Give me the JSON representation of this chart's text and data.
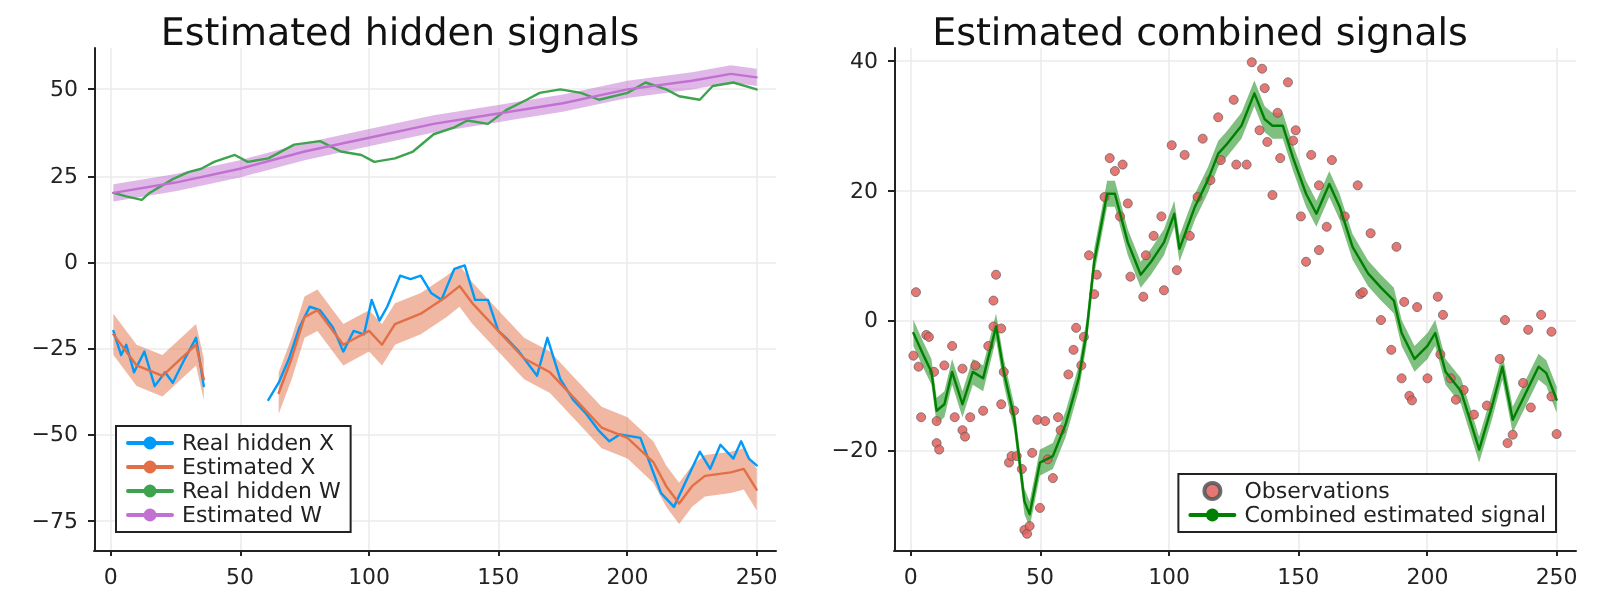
{
  "chart_data": [
    {
      "type": "line",
      "title": "Estimated hidden signals",
      "xlim": [
        -6.5,
        257.5
      ],
      "xticks": [
        0,
        50,
        100,
        150,
        200,
        250
      ],
      "ylim": [
        -83.5,
        62
      ],
      "yticks": [
        -75,
        -50,
        -25,
        0,
        25,
        50
      ],
      "grid": true,
      "legend": "bottom left",
      "marker": "none",
      "line_style": "solid",
      "series": [
        {
          "name": "Real hidden X",
          "color": "#009af9",
          "x": [
            1,
            4,
            6,
            9,
            13,
            17,
            21,
            24,
            28,
            33,
            36,
            40,
            61,
            65,
            69,
            73,
            77,
            81,
            86,
            90,
            94,
            98,
            101,
            104,
            107,
            112,
            116,
            120,
            124,
            128,
            133,
            137,
            141,
            146,
            150,
            153,
            158,
            165,
            169,
            174,
            179,
            184,
            189,
            193,
            197,
            205,
            209,
            213,
            218,
            223,
            228,
            232,
            236,
            241,
            244,
            247,
            250
          ],
          "values": [
            -20,
            -27,
            -24,
            -32,
            -26,
            -36,
            -32,
            -35,
            -29,
            -22,
            -36,
            null,
            -40,
            -35,
            -28,
            -19,
            -13,
            -14,
            -19,
            -26,
            -20,
            -21,
            -11,
            -17,
            -13,
            -4,
            -5,
            -4,
            -9,
            -11,
            -2,
            -1,
            -11,
            -11,
            -20,
            -22,
            -26,
            -33,
            -22,
            -34,
            -40,
            -44,
            -49,
            -52,
            -50,
            -51,
            -59,
            -67,
            -71,
            -63,
            -55,
            -60,
            -53,
            -57,
            -52,
            -57,
            -59
          ]
        },
        {
          "name": "Estimated X",
          "color": "#e26f46",
          "x": [
            1,
            10,
            20,
            33,
            36,
            40,
            65,
            70,
            75,
            80,
            90,
            95,
            100,
            105,
            110,
            120,
            130,
            135,
            140,
            150,
            160,
            170,
            180,
            190,
            200,
            210,
            215,
            220,
            225,
            230,
            240,
            245,
            250
          ],
          "values": [
            -21,
            -30,
            -33,
            -24,
            -34,
            null,
            -38,
            -28,
            -16,
            -14,
            -24,
            -22,
            -20,
            -24,
            -18,
            -15,
            -10,
            -7,
            -12,
            -20,
            -28,
            -32,
            -40,
            -48,
            -51,
            -58,
            -65,
            -70,
            -65,
            -62,
            -61,
            -60,
            -66
          ],
          "lower": [
            -27,
            -36,
            -39,
            -30,
            -40,
            null,
            -44,
            -34,
            -22,
            -20,
            -30,
            -28,
            -26,
            -30,
            -24,
            -21,
            -16,
            -13,
            -18,
            -26,
            -34,
            -38,
            -46,
            -54,
            -57,
            -64,
            -71,
            -76,
            -71,
            -68,
            -67,
            -66,
            -72
          ],
          "upper": [
            -15,
            -24,
            -27,
            -18,
            -28,
            null,
            -32,
            -22,
            -10,
            -8,
            -18,
            -16,
            -14,
            -18,
            -12,
            -9,
            -4,
            -1,
            -6,
            -14,
            -22,
            -26,
            -34,
            -42,
            -45,
            -52,
            -59,
            -64,
            -59,
            -56,
            -55,
            -54,
            -60
          ]
        },
        {
          "name": "Real hidden W",
          "color": "#3da44d",
          "x": [
            1,
            6,
            12,
            15,
            24,
            30,
            35,
            40,
            48,
            53,
            61,
            71,
            81,
            89,
            97,
            102,
            110,
            117,
            125,
            133,
            138,
            146,
            153,
            161,
            166,
            174,
            182,
            189,
            200,
            207,
            215,
            220,
            228,
            233,
            241,
            250
          ],
          "values": [
            20,
            19,
            18,
            20,
            24,
            26,
            27,
            29,
            31,
            29,
            30,
            34,
            35,
            32,
            31,
            29,
            30,
            32,
            37,
            39,
            41,
            40,
            44,
            47,
            49,
            50,
            49,
            47,
            49,
            52,
            50,
            48,
            47,
            51,
            52,
            50
          ]
        },
        {
          "name": "Estimated W",
          "color": "#c271d2",
          "x": [
            1,
            25,
            50,
            75,
            100,
            125,
            150,
            175,
            200,
            225,
            240,
            250
          ],
          "values": [
            20,
            23,
            27,
            32,
            36,
            40,
            43,
            46,
            50,
            52.5,
            54.5,
            53.5
          ],
          "lower": [
            17.5,
            20.5,
            24.5,
            29.5,
            33.5,
            37.5,
            40.5,
            43.5,
            47.5,
            50,
            52,
            51
          ],
          "upper": [
            22.5,
            25.5,
            29.5,
            34.5,
            38.5,
            42.5,
            45.5,
            48.5,
            52.5,
            55,
            57,
            56
          ]
        }
      ]
    },
    {
      "type": "line",
      "title": "Estimated combined signals",
      "xlim": [
        -6.5,
        257.5
      ],
      "xticks": [
        0,
        50,
        100,
        150,
        200,
        250
      ],
      "ylim": [
        -35.5,
        42
      ],
      "yticks": [
        -20,
        0,
        20,
        40
      ],
      "grid": true,
      "legend": "bottom right",
      "marker": "none",
      "line_style": "solid",
      "series": [
        {
          "name": "Observations",
          "type": "scatter",
          "marker": "circle",
          "color": "#e0605c",
          "x": [
            1,
            2,
            3,
            4,
            6,
            7,
            9,
            10,
            10,
            11,
            13,
            16,
            17,
            20,
            20,
            21,
            23,
            25,
            28,
            30,
            32,
            32,
            33,
            35,
            36,
            35,
            38,
            39,
            40,
            41,
            43,
            44,
            45,
            46,
            47,
            49,
            50,
            52,
            53,
            55,
            57,
            58,
            61,
            63,
            64,
            66,
            67,
            69,
            71,
            72,
            75,
            77,
            79,
            81,
            82,
            84,
            85,
            90,
            91,
            94,
            97,
            98,
            101,
            103,
            106,
            108,
            111,
            113,
            116,
            119,
            120,
            125,
            126,
            130,
            132,
            135,
            136,
            137,
            138,
            140,
            142,
            143,
            146,
            148,
            149,
            151,
            153,
            155,
            158,
            158,
            161,
            163,
            168,
            173,
            174,
            175,
            178,
            182,
            186,
            188,
            190,
            191,
            193,
            194,
            196,
            200,
            204,
            205,
            206,
            209,
            211,
            214,
            218,
            223,
            228,
            230,
            231,
            233,
            237,
            239,
            240,
            244,
            248,
            248,
            250
          ],
          "values": [
            -5.5,
            4.3,
            -7.2,
            -15,
            -2.3,
            -2.6,
            -8,
            -15.6,
            -19,
            -20,
            -7,
            -4,
            -15,
            -7.5,
            -17,
            -18,
            -15,
            -7,
            -14,
            -4,
            -1,
            3,
            7,
            -1.3,
            -8,
            -13,
            -22,
            -21,
            -14,
            -21,
            -23,
            -32.4,
            -33,
            -31.8,
            -20.5,
            -15.4,
            -29,
            -15.6,
            -21.5,
            -24.4,
            -15,
            -17,
            -8.4,
            -4.6,
            -1.2,
            -7,
            -2.6,
            10,
            4,
            7,
            19,
            25,
            23,
            16,
            24,
            18,
            6.7,
            3.6,
            10,
            13,
            16,
            4.6,
            27,
            7.7,
            25.5,
            13,
            19,
            28,
            21.6,
            31.3,
            24.7,
            34,
            24,
            24,
            39.8,
            29.3,
            38.8,
            35.8,
            27.5,
            19.3,
            32,
            25,
            36.7,
            27.7,
            29.3,
            16,
            9,
            25.5,
            10.8,
            20.8,
            14.4,
            24.7,
            16,
            20.8,
            4,
            4.3,
            13.4,
            0,
            -4.6,
            11.3,
            -9,
            2.8,
            -11.7,
            -12.4,
            2,
            -9,
            3.6,
            -5.3,
            0.8,
            -9,
            -12.3,
            -10.8,
            -14.6,
            -13.2,
            -6,
            0,
            -19,
            -17.7,
            -9.7,
            -1.5,
            -13.5,
            0.8,
            -1.8,
            -11.8,
            -17.6
          ]
        },
        {
          "name": "Combined estimated signal",
          "color": "#008000",
          "x": [
            1,
            5,
            8,
            10,
            13,
            16,
            20,
            24,
            28,
            33,
            36,
            40,
            44,
            46,
            50,
            55,
            60,
            65,
            68,
            71,
            76,
            79,
            84,
            89,
            93,
            98,
            102,
            104,
            110,
            115,
            119,
            122,
            128,
            133,
            137,
            140,
            144,
            148,
            153,
            157,
            162,
            166,
            171,
            177,
            182,
            187,
            190,
            195,
            200,
            203,
            207,
            213,
            218,
            220,
            225,
            229,
            233,
            238,
            243,
            246,
            250
          ],
          "values": [
            -2,
            -5.5,
            -8,
            -14,
            -13,
            -8,
            -13,
            -8,
            -9,
            -1,
            -8,
            -15,
            -28,
            -30,
            -22,
            -21,
            -16,
            -9,
            -2,
            9,
            19.5,
            19.5,
            12,
            7,
            9,
            12,
            16.4,
            11,
            17.5,
            21.6,
            25.7,
            27,
            30,
            35,
            31,
            30,
            30,
            25,
            19.5,
            16.4,
            21,
            17.5,
            11.3,
            7.2,
            5,
            3,
            -2,
            -6,
            -4,
            -2,
            -8,
            -11,
            -17.4,
            -20,
            -13.3,
            -7.2,
            -15.4,
            -11.3,
            -7.2,
            -8.2,
            -12.3
          ],
          "lower": [
            -4,
            -7.5,
            -10,
            -16,
            -15,
            -10,
            -15,
            -10,
            -11,
            -3,
            -10,
            -17,
            -30,
            -32,
            -24,
            -23,
            -18,
            -11,
            -4,
            7,
            17.5,
            17.5,
            10,
            5,
            7,
            10,
            14.4,
            9,
            15.5,
            19.6,
            23.7,
            25,
            28,
            33,
            29,
            28,
            28,
            23,
            17.5,
            14.4,
            19,
            15.5,
            9.3,
            5.2,
            3,
            1,
            -4,
            -8,
            -6,
            -4,
            -10,
            -13,
            -19.4,
            -22,
            -15.3,
            -9.2,
            -17.4,
            -13.3,
            -9.2,
            -10.2,
            -14.3
          ],
          "upper": [
            0,
            -3.5,
            -6,
            -12,
            -11,
            -6,
            -11,
            -6,
            -7,
            1,
            -6,
            -13,
            -26,
            -28,
            -20,
            -19,
            -14,
            -7,
            0,
            11,
            21.5,
            21.5,
            14,
            9,
            11,
            14,
            18.4,
            13,
            19.5,
            23.6,
            27.7,
            29,
            32,
            37,
            33,
            32,
            32,
            27,
            21.5,
            18.4,
            23,
            19.5,
            13.3,
            9.2,
            7,
            5,
            0,
            -4,
            -2,
            0,
            -6,
            -9,
            -15.4,
            -18,
            -11.3,
            -5.2,
            -13.4,
            -9.3,
            -5.2,
            -6.2,
            -10.3
          ]
        }
      ]
    }
  ]
}
